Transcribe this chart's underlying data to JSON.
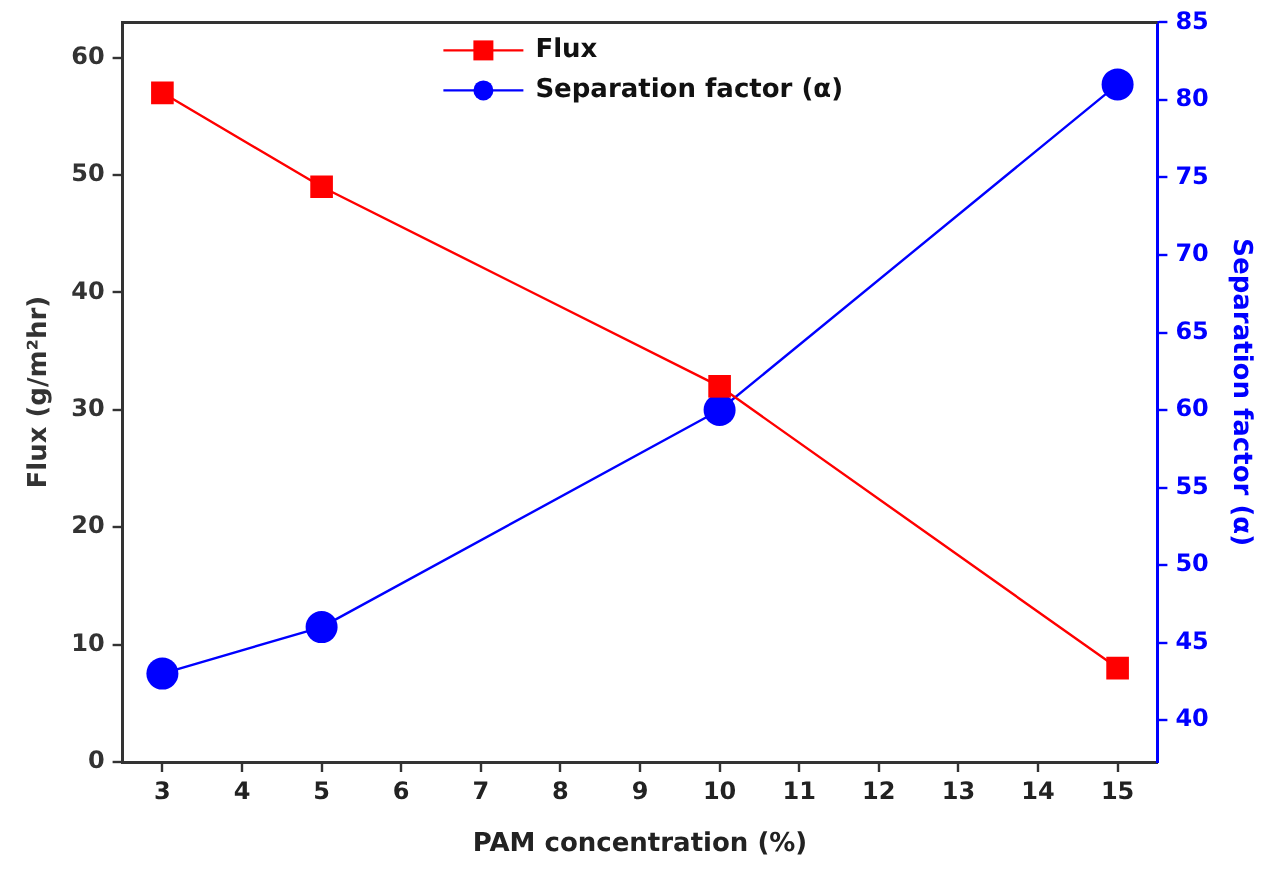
{
  "chart_data": {
    "type": "line",
    "xlabel": "PAM concentration (%)",
    "ylabel": "Flux (g/m²hr)",
    "y2label": "Separation factor (α)",
    "x": [
      3,
      5,
      10,
      15
    ],
    "xlim": [
      2.5,
      15.5
    ],
    "xticks": [
      3,
      4,
      5,
      6,
      7,
      8,
      9,
      10,
      11,
      12,
      13,
      14,
      15
    ],
    "ylim": [
      0,
      63
    ],
    "yticks": [
      0,
      10,
      20,
      30,
      40,
      50,
      60
    ],
    "y2lim": [
      37.3,
      85
    ],
    "y2ticks": [
      40,
      45,
      50,
      55,
      60,
      65,
      70,
      75,
      80,
      85
    ],
    "series": [
      {
        "name": "Flux",
        "color": "#ff0000",
        "marker": "square",
        "values": [
          57,
          49,
          32,
          8
        ]
      },
      {
        "name": "Separation factor (α)",
        "color": "#0000ff",
        "marker": "circle",
        "axis": "y2",
        "values": [
          43,
          46,
          60,
          81
        ]
      }
    ],
    "grid": false,
    "legend": "top",
    "line_style": "solid"
  }
}
